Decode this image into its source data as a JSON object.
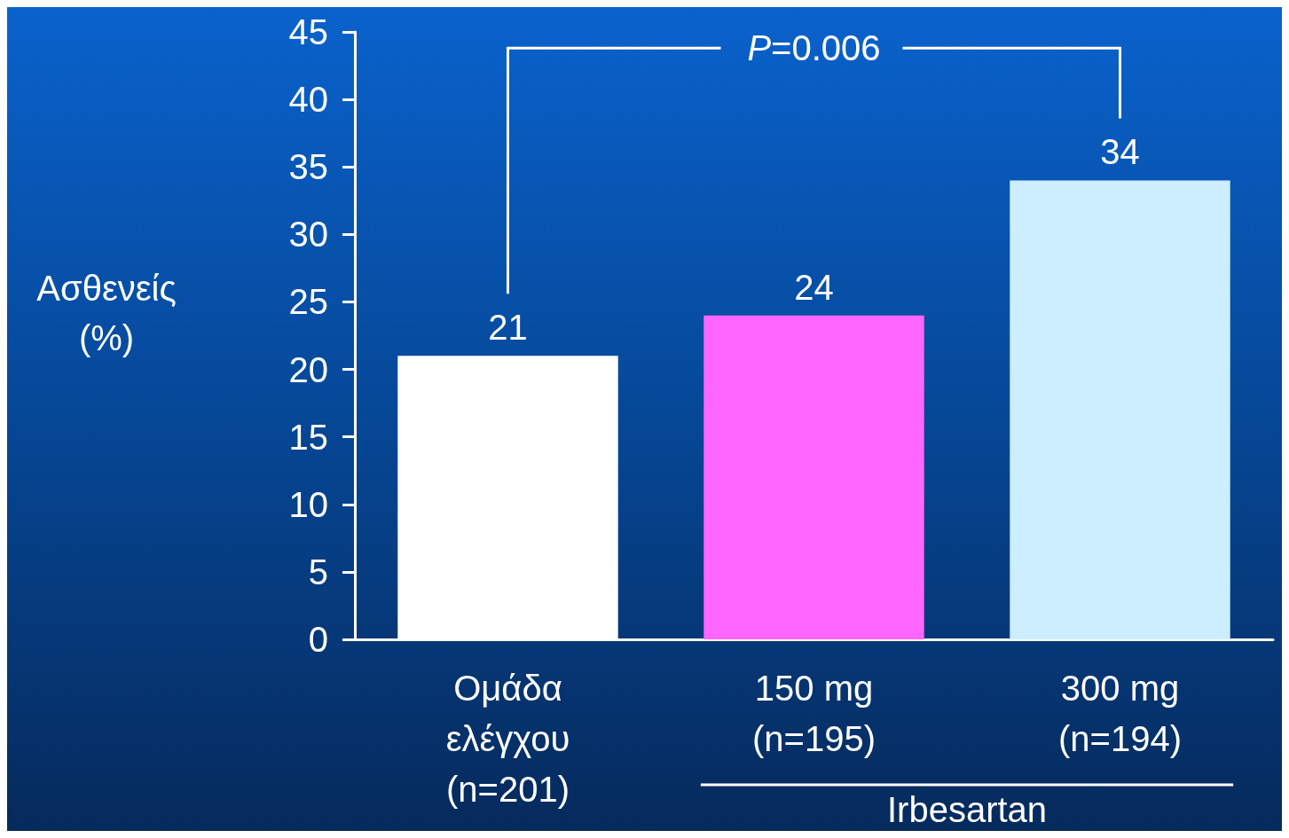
{
  "chart_data": {
    "type": "bar",
    "ylabel": "Ασθενείς\n(%)",
    "categories": [
      "Ομάδα\nελέγχου\n(n=201)",
      "150 mg\n(n=195)",
      "300 mg\n(n=194)"
    ],
    "values": [
      21,
      24,
      34
    ],
    "colors": [
      "#ffffff",
      "#ff66ff",
      "#cceeff"
    ],
    "ylim": [
      0,
      45
    ],
    "yticks": [
      0,
      5,
      10,
      15,
      20,
      25,
      30,
      35,
      40,
      45
    ],
    "data_labels": true,
    "grid": false,
    "annotations": [
      "P=0.006",
      "Irbesartan"
    ]
  }
}
